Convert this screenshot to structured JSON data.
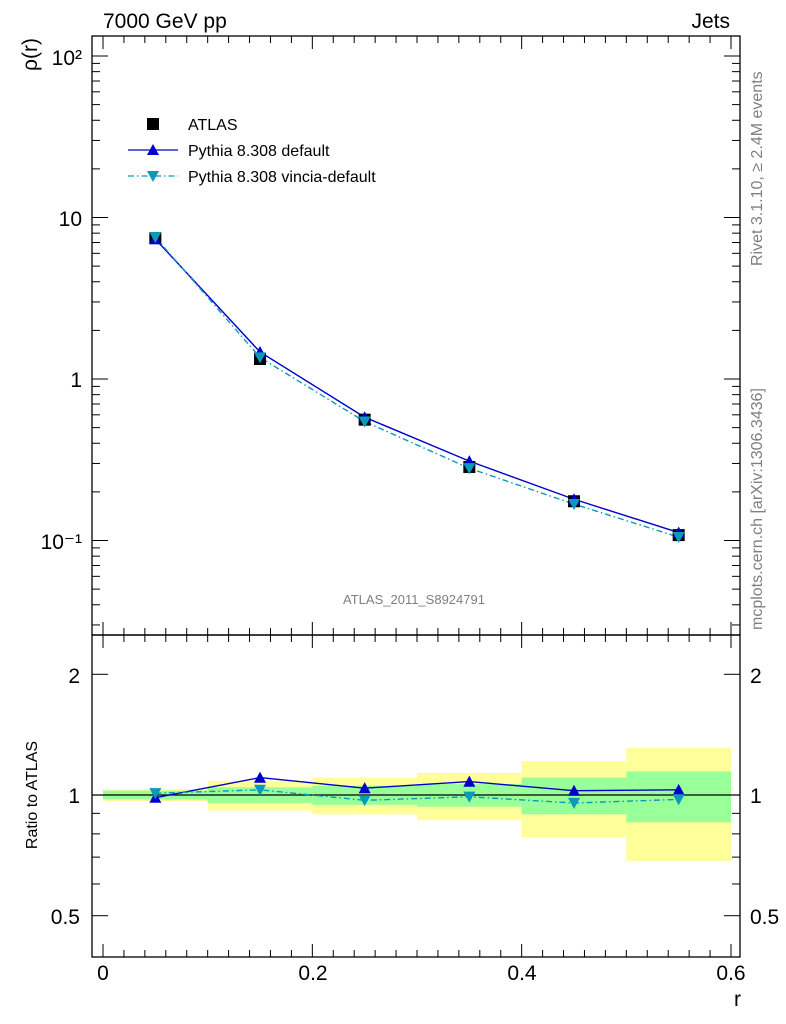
{
  "header": {
    "left": "7000 GeV pp",
    "right": "Jets"
  },
  "side_text": {
    "rivet": "Rivet 3.1.10, ≥ 2.4M events",
    "mcplots": "mcplots.cern.ch [arXiv:1306.3436]"
  },
  "analysis_id": "ATLAS_2011_S8924791",
  "chart_data": [
    {
      "type": "scatter",
      "panel": "main",
      "xlabel": "r",
      "ylabel": "ρ(r)",
      "log_y": true,
      "xlim": [
        0,
        0.6
      ],
      "ylim": [
        0.03,
        130
      ],
      "y_tick_labels": [
        "10⁻¹",
        "1",
        "10",
        "10²"
      ],
      "x": [
        0.05,
        0.15,
        0.25,
        0.35,
        0.45,
        0.55
      ],
      "legend_placement": "top-left",
      "series": [
        {
          "name": "ATLAS",
          "style": "square-marker",
          "color": "#000000",
          "values": [
            7.45,
            1.33,
            0.56,
            0.285,
            0.175,
            0.108
          ]
        },
        {
          "name": "Pythia 8.308 default",
          "style": "solid-line-triangle-up",
          "color": "#0000cc",
          "values": [
            7.35,
            1.47,
            0.58,
            0.31,
            0.18,
            0.112
          ]
        },
        {
          "name": "Pythia 8.308 vincia-default",
          "style": "dashdot-line-triangle-down",
          "color": "#0a9ab8",
          "values": [
            7.55,
            1.36,
            0.545,
            0.28,
            0.168,
            0.105
          ]
        }
      ]
    },
    {
      "type": "line",
      "panel": "ratio",
      "xlabel": "r",
      "ylabel": "Ratio to ATLAS",
      "xlim": [
        0,
        0.6
      ],
      "ylim": [
        0.4,
        2.35
      ],
      "x_tick_labels": [
        "0",
        "0.2",
        "0.4",
        "0.6"
      ],
      "y_tick_labels": [
        "0.5",
        "1",
        "2"
      ],
      "x": [
        0.05,
        0.15,
        0.25,
        0.35,
        0.45,
        0.55
      ],
      "bands": {
        "bin_edges": [
          0,
          0.1,
          0.2,
          0.3,
          0.4,
          0.5,
          0.6
        ],
        "stat_color": "#99ff99",
        "total_color": "#ffff99",
        "stat_low": [
          0.975,
          0.955,
          0.945,
          0.935,
          0.895,
          0.855
        ],
        "stat_high": [
          1.025,
          1.045,
          1.055,
          1.065,
          1.105,
          1.145
        ],
        "total_low": [
          0.965,
          0.915,
          0.895,
          0.865,
          0.785,
          0.685
        ],
        "total_high": [
          1.035,
          1.085,
          1.105,
          1.135,
          1.215,
          1.31
        ]
      },
      "series": [
        {
          "name": "Pythia 8.308 default",
          "color": "#0000cc",
          "values": [
            0.985,
            1.105,
            1.04,
            1.08,
            1.025,
            1.03
          ]
        },
        {
          "name": "Pythia 8.308 vincia-default",
          "color": "#0a9ab8",
          "values": [
            1.01,
            1.03,
            0.97,
            0.99,
            0.955,
            0.975
          ]
        }
      ]
    }
  ]
}
